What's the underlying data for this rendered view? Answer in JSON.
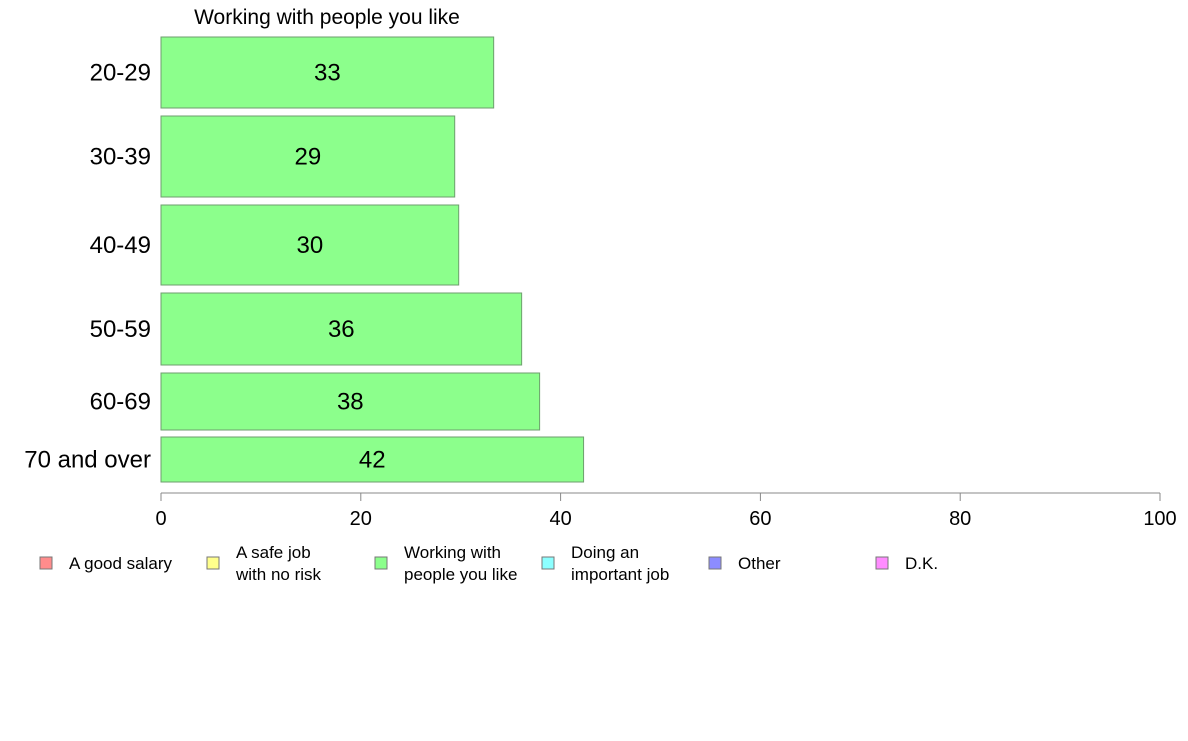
{
  "chart_data": {
    "type": "bar",
    "orientation": "horizontal",
    "title": "Working with people you like",
    "categories": [
      "20-29",
      "30-39",
      "40-49",
      "50-59",
      "60-69",
      "70 and over"
    ],
    "series": [
      {
        "name": "Working with people you like",
        "values": [
          33.3,
          29.4,
          29.8,
          36.1,
          37.9,
          42.3
        ],
        "labels": [
          "33",
          "29",
          "30",
          "36",
          "38",
          "42"
        ],
        "color": "#8cff8c"
      }
    ],
    "xlim": [
      0,
      100
    ],
    "xticks": [
      0,
      20,
      40,
      60,
      80,
      100
    ],
    "grid": false,
    "legend": {
      "position": "bottom",
      "items": [
        {
          "lines": [
            "A good salary"
          ],
          "color": "#ff8c8c"
        },
        {
          "lines": [
            "A safe job",
            "with no risk"
          ],
          "color": "#ffff8c"
        },
        {
          "lines": [
            "Working with",
            "people you like"
          ],
          "color": "#8cff8c"
        },
        {
          "lines": [
            "Doing an",
            "important job"
          ],
          "color": "#8cffff"
        },
        {
          "lines": [
            "Other"
          ],
          "color": "#8c8cff"
        },
        {
          "lines": [
            "D.K."
          ],
          "color": "#ff8cff"
        }
      ]
    }
  }
}
